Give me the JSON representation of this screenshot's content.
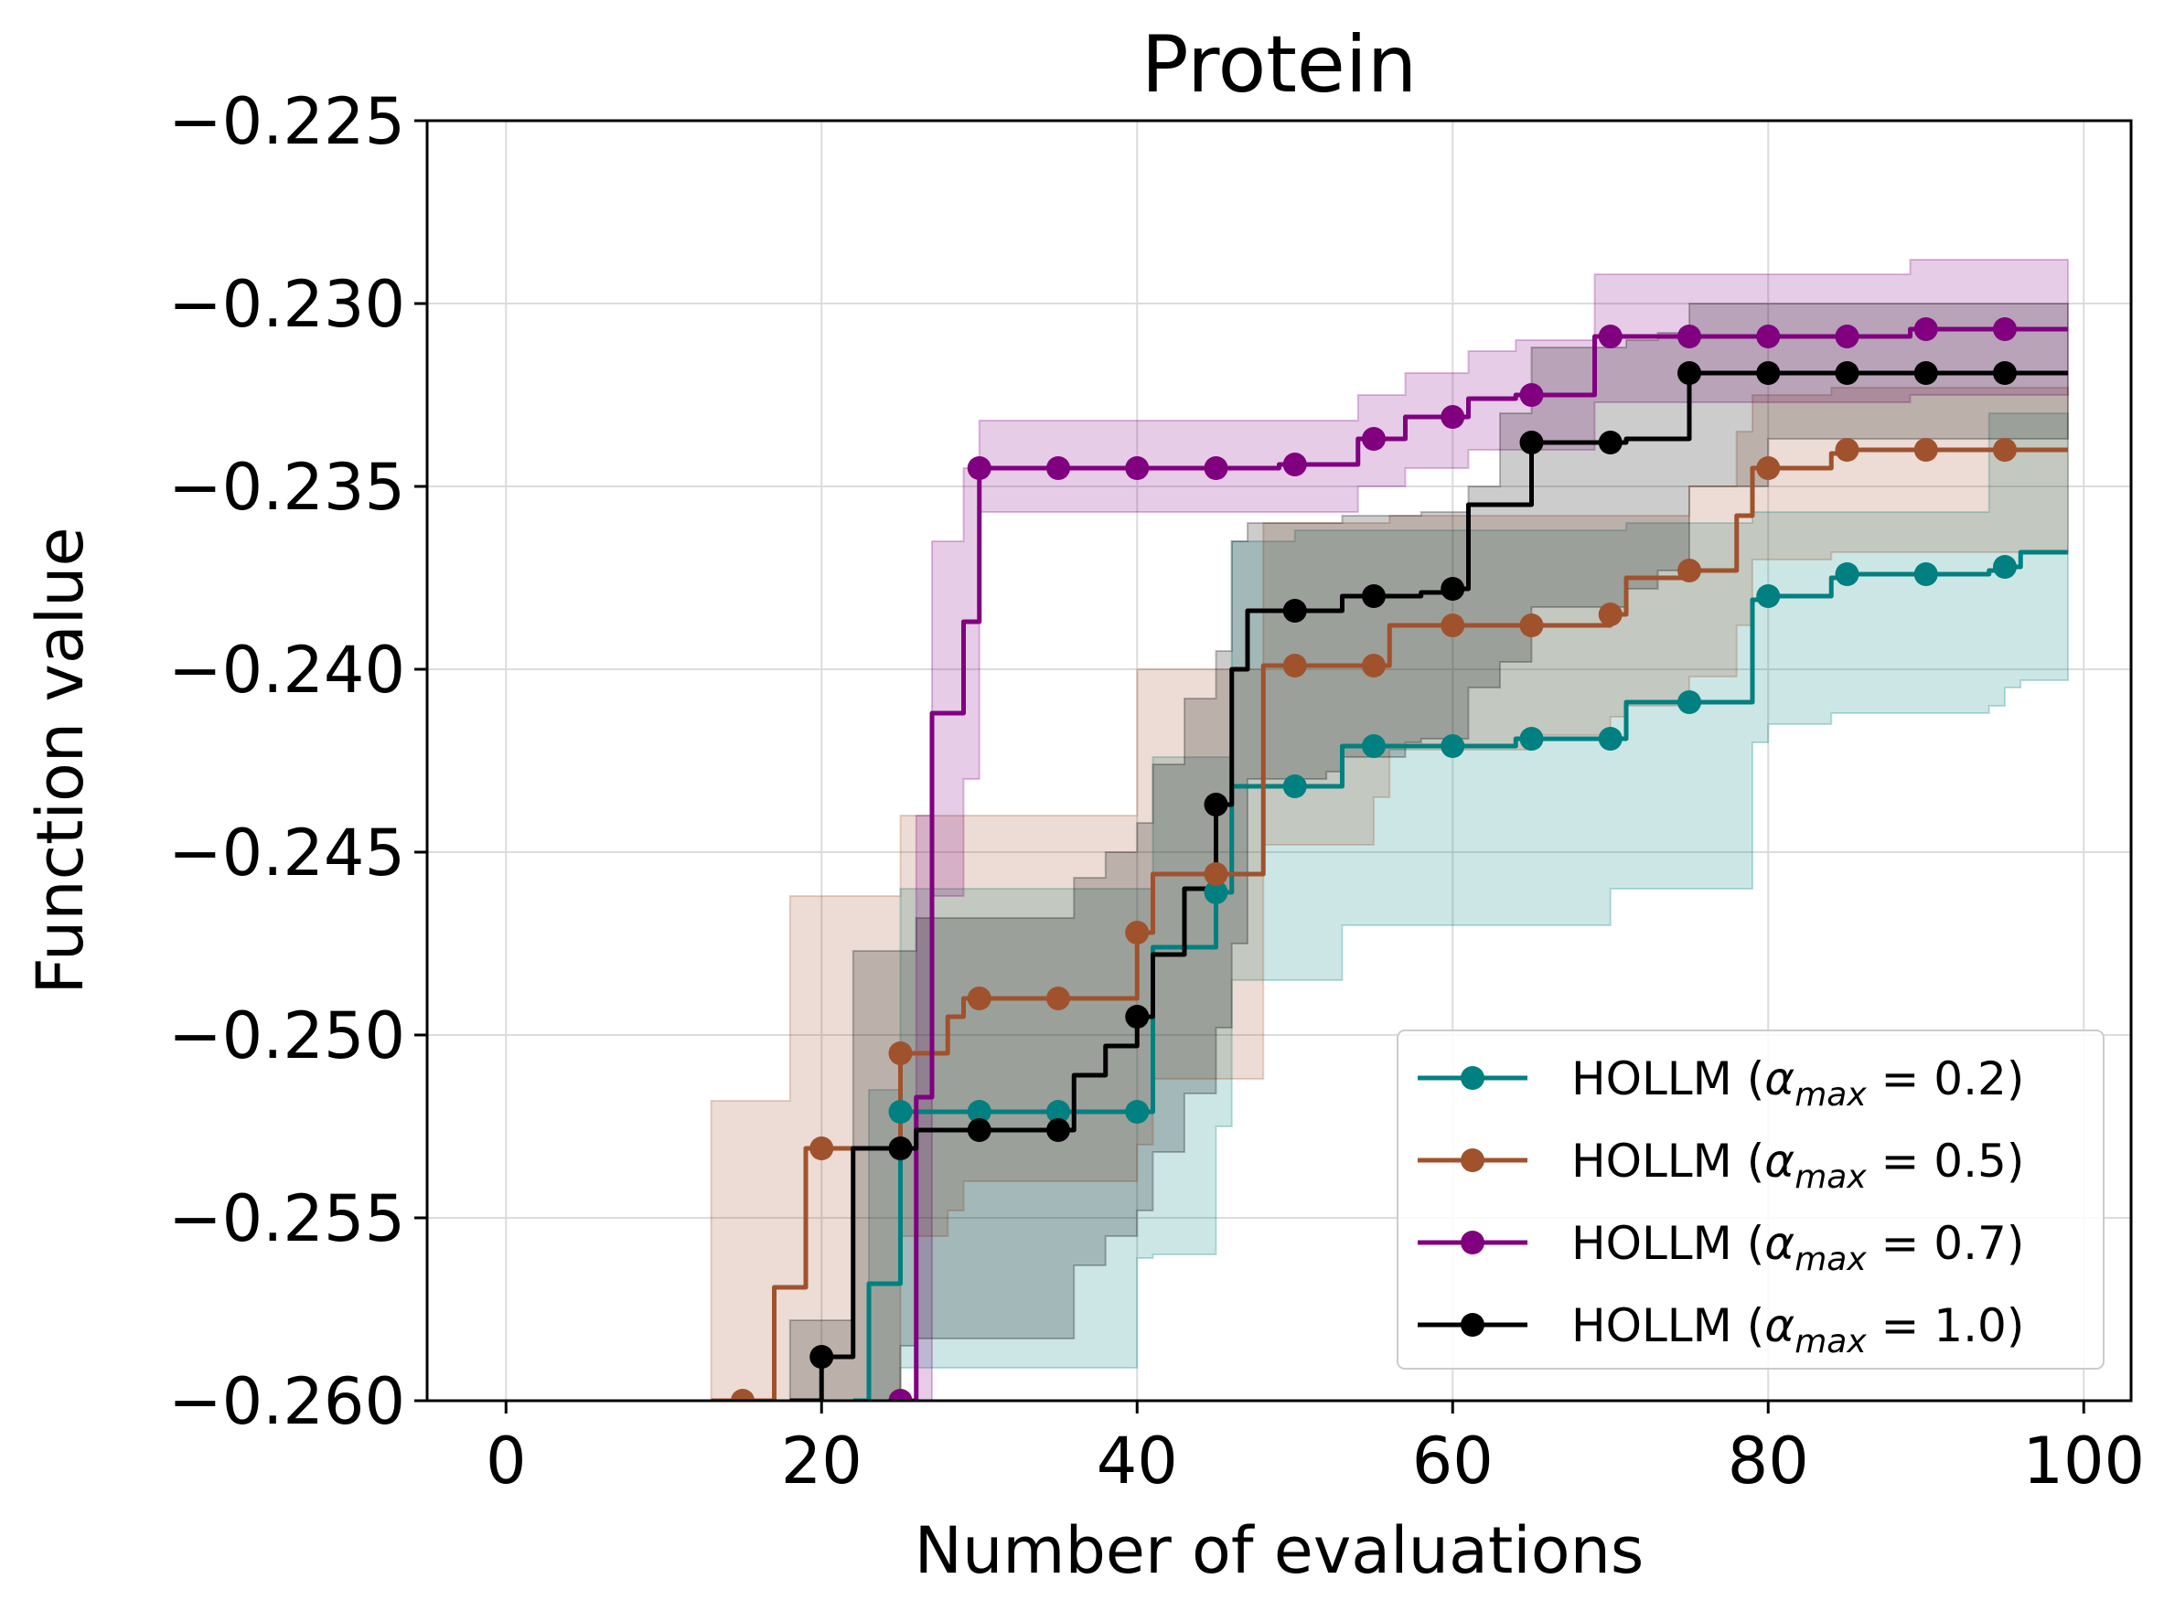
{
  "chart_data": {
    "type": "line",
    "title": "Protein",
    "xlabel": "Number of evaluations",
    "ylabel": "Function value",
    "xlim": [
      -5,
      103
    ],
    "ylim": [
      -0.26,
      -0.225
    ],
    "xticks": [
      0,
      20,
      40,
      60,
      80,
      100
    ],
    "xtick_labels": [
      "0",
      "20",
      "40",
      "60",
      "80",
      "100"
    ],
    "yticks": [
      -0.26,
      -0.255,
      -0.25,
      -0.245,
      -0.24,
      -0.235,
      -0.23,
      -0.225
    ],
    "ytick_labels": [
      "−0.260",
      "−0.255",
      "−0.250",
      "−0.245",
      "−0.240",
      "−0.235",
      "−0.230",
      "−0.225"
    ],
    "grid": true,
    "legend_position": "lower-right",
    "marker_every": 5,
    "series": [
      {
        "name": "HOLLM (",
        "legend_alpha": "α",
        "legend_sub": "max",
        "legend_value": " = 0.2)",
        "color": "#008080",
        "x": [
          22,
          23,
          24,
          25,
          40,
          41,
          45,
          46,
          50,
          52,
          53,
          55,
          64,
          65,
          70,
          71,
          74,
          75,
          78,
          79,
          80,
          83,
          84,
          85,
          94,
          95,
          96,
          99
        ],
        "y": [
          -0.26,
          -0.2568,
          -0.2568,
          -0.2521,
          -0.2521,
          -0.2476,
          -0.2461,
          -0.2432,
          -0.2432,
          -0.2432,
          -0.2421,
          -0.2421,
          -0.2419,
          -0.2419,
          -0.2419,
          -0.2409,
          -0.2409,
          -0.2409,
          -0.2409,
          -0.2381,
          -0.238,
          -0.238,
          -0.2375,
          -0.2374,
          -0.2373,
          -0.2372,
          -0.2368,
          -0.2368
        ],
        "lower": [
          -0.26,
          -0.26,
          -0.26,
          -0.2591,
          -0.2561,
          -0.256,
          -0.2525,
          -0.2485,
          -0.2485,
          -0.2485,
          -0.247,
          -0.247,
          -0.247,
          -0.247,
          -0.246,
          -0.246,
          -0.246,
          -0.246,
          -0.246,
          -0.242,
          -0.2415,
          -0.2415,
          -0.2412,
          -0.2412,
          -0.241,
          -0.2405,
          -0.2403,
          -0.2403
        ],
        "upper": [
          -0.26,
          -0.2515,
          -0.2515,
          -0.246,
          -0.246,
          -0.2424,
          -0.2424,
          -0.2365,
          -0.2362,
          -0.2362,
          -0.2362,
          -0.2362,
          -0.2362,
          -0.2362,
          -0.2362,
          -0.236,
          -0.236,
          -0.236,
          -0.236,
          -0.2357,
          -0.2357,
          -0.2357,
          -0.2357,
          -0.2357,
          -0.233,
          -0.233,
          -0.233,
          -0.233
        ]
      },
      {
        "name": "HOLLM (",
        "legend_alpha": "α",
        "legend_sub": "max",
        "legend_value": " = 0.5)",
        "color": "#A0522D",
        "x": [
          13,
          16,
          17,
          18,
          19,
          20,
          24,
          25,
          27,
          28,
          29,
          30,
          36,
          39,
          40,
          41,
          45,
          47,
          48,
          49,
          50,
          55,
          56,
          57,
          60,
          65,
          69,
          70,
          71,
          72,
          75,
          77,
          78,
          79,
          80,
          83,
          84,
          85,
          95,
          99
        ],
        "y": [
          -0.26,
          -0.26,
          -0.2569,
          -0.2569,
          -0.2531,
          -0.2531,
          -0.2531,
          -0.2505,
          -0.2505,
          -0.2495,
          -0.249,
          -0.249,
          -0.249,
          -0.249,
          -0.2472,
          -0.2456,
          -0.2456,
          -0.2456,
          -0.2399,
          -0.2399,
          -0.2399,
          -0.2399,
          -0.2388,
          -0.2388,
          -0.2388,
          -0.2388,
          -0.2388,
          -0.2385,
          -0.2375,
          -0.2375,
          -0.2373,
          -0.2373,
          -0.2358,
          -0.2345,
          -0.2345,
          -0.2345,
          -0.2341,
          -0.234,
          -0.234,
          -0.234
        ],
        "lower": [
          -0.26,
          -0.26,
          -0.26,
          -0.26,
          -0.26,
          -0.26,
          -0.26,
          -0.2555,
          -0.2555,
          -0.2548,
          -0.254,
          -0.254,
          -0.254,
          -0.254,
          -0.253,
          -0.2512,
          -0.2512,
          -0.2512,
          -0.2448,
          -0.2448,
          -0.2448,
          -0.2435,
          -0.2422,
          -0.2422,
          -0.2422,
          -0.2418,
          -0.2418,
          -0.2413,
          -0.241,
          -0.241,
          -0.2402,
          -0.2402,
          -0.2388,
          -0.237,
          -0.237,
          -0.237,
          -0.2368,
          -0.2368,
          -0.2368,
          -0.2368
        ],
        "upper": [
          -0.2518,
          -0.2518,
          -0.2518,
          -0.2462,
          -0.2462,
          -0.2462,
          -0.2462,
          -0.244,
          -0.244,
          -0.244,
          -0.244,
          -0.244,
          -0.244,
          -0.244,
          -0.24,
          -0.24,
          -0.24,
          -0.24,
          -0.236,
          -0.236,
          -0.236,
          -0.236,
          -0.2358,
          -0.2358,
          -0.2358,
          -0.2358,
          -0.2358,
          -0.2358,
          -0.2358,
          -0.2358,
          -0.235,
          -0.235,
          -0.2335,
          -0.2325,
          -0.2325,
          -0.2325,
          -0.2323,
          -0.2323,
          -0.2323,
          -0.2323
        ]
      },
      {
        "name": "HOLLM (",
        "legend_alpha": "α",
        "legend_sub": "max",
        "legend_value": " = 0.7)",
        "color": "#800080",
        "x": [
          25,
          26,
          27,
          28,
          29,
          30,
          47,
          49,
          50,
          53,
          54,
          55,
          56,
          57,
          59,
          60,
          61,
          62,
          63,
          64,
          65,
          68,
          69,
          70,
          75,
          85,
          88,
          89,
          90,
          95,
          99
        ],
        "y": [
          -0.26,
          -0.2517,
          -0.2412,
          -0.2412,
          -0.2387,
          -0.2345,
          -0.2345,
          -0.2344,
          -0.2344,
          -0.2344,
          -0.2337,
          -0.2337,
          -0.2337,
          -0.2331,
          -0.2331,
          -0.2331,
          -0.2326,
          -0.2326,
          -0.2326,
          -0.2325,
          -0.2325,
          -0.2325,
          -0.2309,
          -0.2309,
          -0.2309,
          -0.2309,
          -0.2309,
          -0.2307,
          -0.2307,
          -0.2307,
          -0.2307
        ],
        "lower": [
          -0.26,
          -0.26,
          -0.2462,
          -0.2462,
          -0.243,
          -0.2357,
          -0.2357,
          -0.2357,
          -0.2357,
          -0.2357,
          -0.235,
          -0.235,
          -0.235,
          -0.2345,
          -0.2345,
          -0.2345,
          -0.234,
          -0.234,
          -0.234,
          -0.234,
          -0.234,
          -0.234,
          -0.2327,
          -0.2327,
          -0.2327,
          -0.2327,
          -0.2327,
          -0.2325,
          -0.2325,
          -0.2325,
          -0.2325
        ],
        "upper": [
          -0.26,
          -0.244,
          -0.2365,
          -0.2365,
          -0.2345,
          -0.2332,
          -0.2332,
          -0.2332,
          -0.2332,
          -0.2332,
          -0.2325,
          -0.2325,
          -0.2325,
          -0.2319,
          -0.2319,
          -0.2319,
          -0.2313,
          -0.2313,
          -0.2313,
          -0.231,
          -0.231,
          -0.231,
          -0.2292,
          -0.2292,
          -0.2292,
          -0.2292,
          -0.2292,
          -0.2288,
          -0.2288,
          -0.2288,
          -0.2288
        ]
      },
      {
        "name": "HOLLM (",
        "legend_alpha": "α",
        "legend_sub": "max",
        "legend_value": " = 1.0)",
        "color": "#000000",
        "x": [
          18,
          20,
          21,
          22,
          25,
          26,
          30,
          35,
          36,
          37,
          38,
          39,
          40,
          41,
          42,
          43,
          44,
          45,
          46,
          47,
          48,
          50,
          52,
          53,
          55,
          57,
          58,
          60,
          61,
          62,
          63,
          65,
          70,
          71,
          72,
          73,
          74,
          75,
          80,
          99
        ],
        "y": [
          -0.26,
          -0.2588,
          -0.2588,
          -0.2531,
          -0.2531,
          -0.2526,
          -0.2526,
          -0.2526,
          -0.2511,
          -0.2511,
          -0.2503,
          -0.2503,
          -0.2495,
          -0.2478,
          -0.2478,
          -0.246,
          -0.246,
          -0.2437,
          -0.24,
          -0.2384,
          -0.2384,
          -0.2384,
          -0.2384,
          -0.238,
          -0.238,
          -0.238,
          -0.2379,
          -0.2378,
          -0.2355,
          -0.2355,
          -0.2355,
          -0.2338,
          -0.2338,
          -0.2337,
          -0.2337,
          -0.2337,
          -0.2337,
          -0.2319,
          -0.2319,
          -0.2319
        ],
        "lower": [
          -0.26,
          -0.26,
          -0.26,
          -0.26,
          -0.2585,
          -0.2583,
          -0.2583,
          -0.2583,
          -0.2563,
          -0.2563,
          -0.2555,
          -0.2555,
          -0.2548,
          -0.2532,
          -0.2532,
          -0.2516,
          -0.2516,
          -0.2498,
          -0.2475,
          -0.243,
          -0.243,
          -0.243,
          -0.2428,
          -0.2424,
          -0.2424,
          -0.242,
          -0.2419,
          -0.2419,
          -0.2405,
          -0.2405,
          -0.2398,
          -0.2383,
          -0.2383,
          -0.2378,
          -0.2378,
          -0.2373,
          -0.2373,
          -0.235,
          -0.2337,
          -0.2337
        ],
        "upper": [
          -0.2578,
          -0.2578,
          -0.2578,
          -0.2477,
          -0.2477,
          -0.2468,
          -0.2468,
          -0.2468,
          -0.2457,
          -0.2457,
          -0.245,
          -0.245,
          -0.2442,
          -0.2426,
          -0.2426,
          -0.2408,
          -0.2408,
          -0.2395,
          -0.2365,
          -0.236,
          -0.236,
          -0.236,
          -0.236,
          -0.2358,
          -0.2358,
          -0.2358,
          -0.2357,
          -0.2357,
          -0.235,
          -0.235,
          -0.233,
          -0.2312,
          -0.2312,
          -0.231,
          -0.231,
          -0.2308,
          -0.2308,
          -0.23,
          -0.23,
          -0.23
        ]
      }
    ]
  }
}
